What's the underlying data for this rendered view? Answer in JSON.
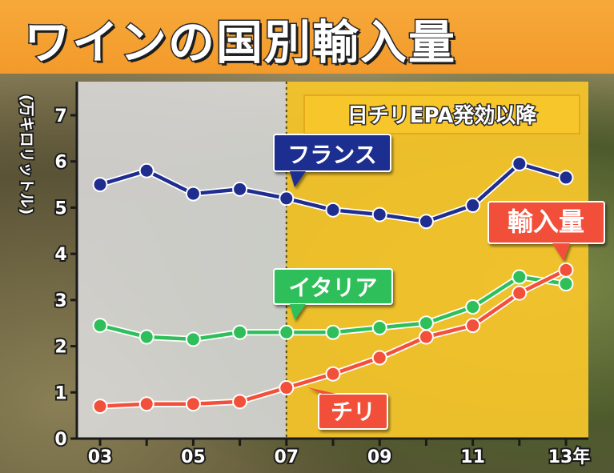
{
  "title": "ワインの国別輸入量",
  "colors": {
    "title_band": "#f39a2b",
    "france": "#1f2d8f",
    "italy": "#2fbf5a",
    "chile": "#f2503a",
    "epa_region": "#f7c62b",
    "pre_region": "#dcdcdc"
  },
  "chart_data": {
    "type": "line",
    "title": "ワインの国別輸入量",
    "ylabel": "(万キロリットル)",
    "xlabel": "",
    "ylim": [
      0,
      7.5
    ],
    "yticks": [
      0,
      1,
      2,
      3,
      4,
      5,
      6,
      7
    ],
    "x": [
      2003,
      2004,
      2005,
      2006,
      2007,
      2008,
      2009,
      2010,
      2011,
      2012,
      2013
    ],
    "xtick_labels": [
      {
        "x": 2003,
        "label": "03"
      },
      {
        "x": 2005,
        "label": "05"
      },
      {
        "x": 2007,
        "label": "07"
      },
      {
        "x": 2009,
        "label": "09"
      },
      {
        "x": 2011,
        "label": "11"
      },
      {
        "x": 2013,
        "label": "13年"
      }
    ],
    "series": [
      {
        "name": "フランス",
        "color": "#1f2d8f",
        "values": [
          5.5,
          5.8,
          5.3,
          5.4,
          5.2,
          4.95,
          4.85,
          4.7,
          5.05,
          5.95,
          5.65
        ]
      },
      {
        "name": "イタリア",
        "color": "#2fbf5a",
        "values": [
          2.45,
          2.2,
          2.15,
          2.3,
          2.3,
          2.3,
          2.4,
          2.5,
          2.85,
          3.5,
          3.35
        ]
      },
      {
        "name": "チリ",
        "color": "#f2503a",
        "values": [
          0.7,
          0.75,
          0.75,
          0.8,
          1.1,
          1.4,
          1.75,
          2.2,
          2.45,
          3.15,
          3.65
        ]
      }
    ],
    "annotations": {
      "epa_label": "日チリEPA発効以降",
      "epa_start_x": 2007,
      "chile_tag": "輸入量"
    },
    "grid": false,
    "legend": "inline-labels"
  }
}
